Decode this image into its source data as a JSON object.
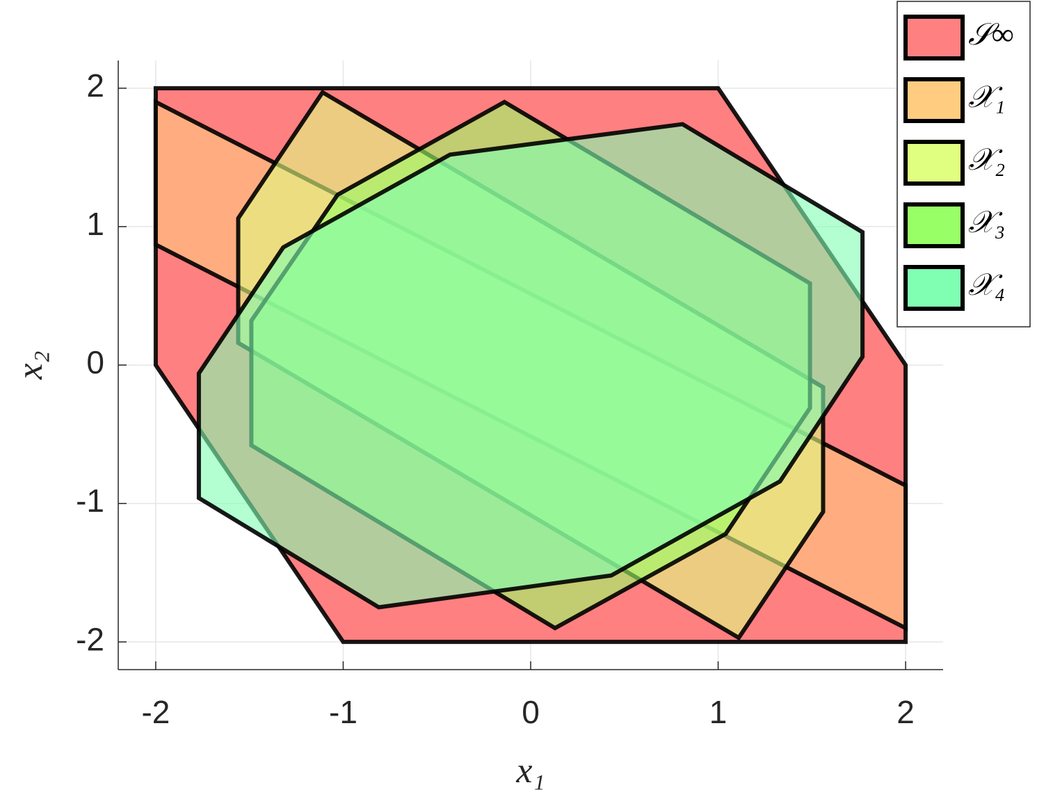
{
  "chart_data": {
    "type": "polygon",
    "xlabel": "x₁",
    "ylabel": "x₂",
    "xlim": [
      -2.2,
      2.2
    ],
    "ylim": [
      -2.2,
      2.2
    ],
    "xticks": [
      -2,
      -1,
      0,
      1,
      2
    ],
    "yticks": [
      -2,
      -1,
      0,
      1,
      2
    ],
    "grid": true,
    "legend": "northeast outside",
    "series": [
      {
        "name": "𝒮∞",
        "color": "#ff8080",
        "x": [
          -2,
          1,
          2,
          2,
          -1,
          -2
        ],
        "y": [
          2,
          2,
          0,
          -2,
          -2,
          0
        ]
      },
      {
        "name": "𝒳₁",
        "color": "#ffcc80",
        "x": [
          -2,
          2,
          2,
          -2
        ],
        "y": [
          1.9,
          -0.87,
          -1.9,
          0.87
        ]
      },
      {
        "name": "𝒳₂",
        "color": "#e0ff80",
        "x": [
          -1.11,
          1.56,
          1.56,
          1.11,
          -1.56,
          -1.56
        ],
        "y": [
          1.97,
          -0.16,
          -1.06,
          -1.97,
          0.16,
          1.06
        ]
      },
      {
        "name": "𝒳₃",
        "color": "#99ff66",
        "x": [
          -0.14,
          1.49,
          1.49,
          1.04,
          0.13,
          -1.49,
          -1.49,
          -1.03
        ],
        "y": [
          1.9,
          0.59,
          -0.31,
          -1.22,
          -1.9,
          -0.58,
          0.32,
          1.23
        ]
      },
      {
        "name": "𝒳₄",
        "color": "#80ffb3",
        "x": [
          0.81,
          1.77,
          1.77,
          1.33,
          0.43,
          -0.81,
          -1.77,
          -1.77,
          -1.32,
          -0.43
        ],
        "y": [
          1.74,
          0.96,
          0.06,
          -0.84,
          -1.52,
          -1.75,
          -0.96,
          -0.06,
          0.85,
          1.52
        ]
      }
    ]
  }
}
